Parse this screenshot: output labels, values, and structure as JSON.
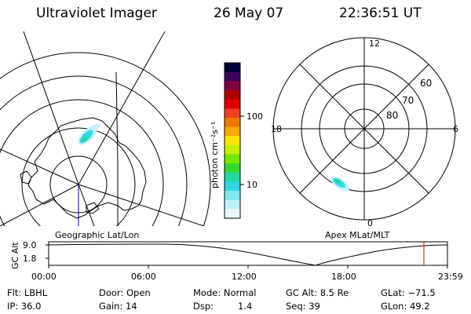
{
  "header": {
    "title": "Ultraviolet Imager",
    "date": "26 May 07",
    "time": "22:36:51 UT"
  },
  "colorbar": {
    "unit_label": "photon cm⁻²s⁻¹",
    "tick_100": "100",
    "tick_10": "10",
    "colors": [
      "#000040",
      "#400060",
      "#800040",
      "#b00000",
      "#e00000",
      "#f04020",
      "#f07800",
      "#f8a800",
      "#f8e800",
      "#c8f000",
      "#78e800",
      "#30d830",
      "#20d8a0",
      "#30d8e0",
      "#80e8f0",
      "#c0f0f8",
      "#e8f8fc"
    ]
  },
  "left_map": {
    "caption": "Geographic Lat/Lon"
  },
  "right_map": {
    "caption": "Apex MLat/MLT",
    "mlt_labels": {
      "top": "12",
      "left": "18",
      "right": "6",
      "bottom": "0"
    },
    "mlat_labels": [
      "60",
      "70",
      "80"
    ]
  },
  "timeline": {
    "ylabel": "GC Alt",
    "ytick_top": "9.0",
    "ytick_bottom": "1.8",
    "xticks": [
      "00:00",
      "06:00",
      "12:00",
      "18:00",
      "23:59"
    ],
    "marker_color": "#e00000"
  },
  "info": {
    "row1": {
      "flt": "Flt: LBHL",
      "door": "Door: Open",
      "mode": "Mode: Normal",
      "gcalt": "GC Alt: 8.5 Re",
      "glat": "GLat: −71.5"
    },
    "row2": {
      "ip": "IP: 36.0",
      "gain": "Gain: 14",
      "dsp_label": "Dsp:",
      "dsp_value": "1.4",
      "seq": "Seq: 39",
      "glon": "GLon:  49.2"
    }
  }
}
